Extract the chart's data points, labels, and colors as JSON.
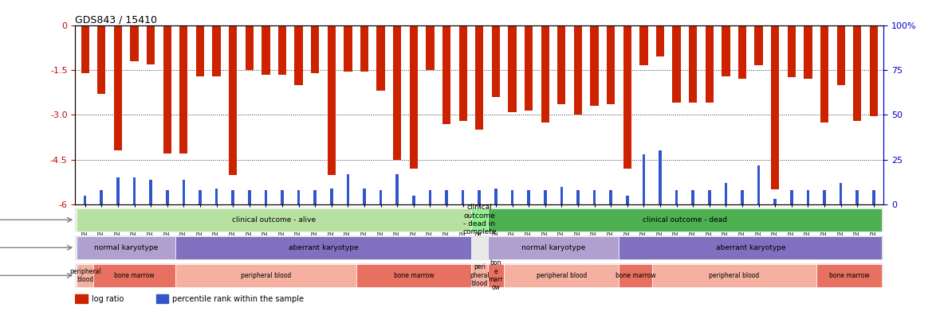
{
  "title": "GDS843 / 15410",
  "samples": [
    "GSM6299",
    "GSM6331",
    "GSM6308",
    "GSM6325",
    "GSM6335",
    "GSM6336",
    "GSM6342",
    "GSM6300",
    "GSM6301",
    "GSM6317",
    "GSM6321",
    "GSM6323",
    "GSM6326",
    "GSM6333",
    "GSM6337",
    "GSM6302",
    "GSM6304",
    "GSM6312",
    "GSM6327",
    "GSM6328",
    "GSM6329",
    "GSM6343",
    "GSM6305",
    "GSM6298",
    "GSM6306",
    "GSM6310",
    "GSM6313",
    "GSM6315",
    "GSM6332",
    "GSM6341",
    "GSM6307",
    "GSM6314",
    "GSM6338",
    "GSM6303",
    "GSM6309",
    "GSM6311",
    "GSM6319",
    "GSM6320",
    "GSM6324",
    "GSM6330",
    "GSM6334",
    "GSM6340",
    "GSM6344",
    "GSM6345",
    "GSM6316",
    "GSM6318",
    "GSM6322",
    "GSM6339",
    "GSM6346"
  ],
  "log_ratio": [
    -1.6,
    -2.3,
    -4.2,
    -1.2,
    -1.3,
    -4.3,
    -4.3,
    -1.7,
    -1.7,
    -5.0,
    -1.5,
    -1.65,
    -1.65,
    -2.0,
    -1.6,
    -5.0,
    -1.55,
    -1.55,
    -2.2,
    -4.5,
    -4.8,
    -1.5,
    -3.3,
    -3.2,
    -3.5,
    -2.4,
    -2.9,
    -2.85,
    -3.25,
    -2.65,
    -3.0,
    -2.7,
    -2.65,
    -4.8,
    -1.35,
    -1.05,
    -2.6,
    -2.6,
    -2.6,
    -1.7,
    -1.8,
    -1.35,
    -5.5,
    -1.75,
    -1.8,
    -3.25,
    -2.0,
    -3.2,
    -3.05
  ],
  "percentile": [
    5,
    8,
    15,
    15,
    14,
    8,
    14,
    8,
    9,
    8,
    8,
    8,
    8,
    8,
    8,
    9,
    17,
    9,
    8,
    17,
    5,
    8,
    8,
    8,
    8,
    9,
    8,
    8,
    8,
    10,
    8,
    8,
    8,
    5,
    28,
    30,
    8,
    8,
    8,
    12,
    8,
    22,
    3,
    8,
    8,
    8,
    12,
    8,
    8
  ],
  "ylim_left": [
    -6,
    0
  ],
  "ylim_right": [
    0,
    100
  ],
  "left_ticks": [
    0,
    -1.5,
    -3.0,
    -4.5,
    -6
  ],
  "right_ticks": [
    0,
    25,
    50,
    75,
    100
  ],
  "bar_width": 0.5,
  "disease_state": {
    "segments": [
      {
        "label": "clinical outcome - alive",
        "start": 0,
        "end": 24,
        "color": "#b7e1a1"
      },
      {
        "label": "clinical\noutcome\n- dead in\ncomplete",
        "start": 24,
        "end": 25,
        "color": "#90ee90"
      },
      {
        "label": "clinical outcome - dead",
        "start": 25,
        "end": 49,
        "color": "#4caf50"
      }
    ]
  },
  "genotype": {
    "segments": [
      {
        "label": "normal karyotype",
        "start": 0,
        "end": 6,
        "color": "#b0a0d0"
      },
      {
        "label": "aberrant karyotype",
        "start": 6,
        "end": 24,
        "color": "#8070c0"
      },
      {
        "label": "normal karyotype",
        "start": 25,
        "end": 33,
        "color": "#b0a0d0"
      },
      {
        "label": "aberrant karyotype",
        "start": 33,
        "end": 49,
        "color": "#8070c0"
      }
    ]
  },
  "tissue": {
    "segments": [
      {
        "label": "peripheral\nblood",
        "start": 0,
        "end": 1,
        "color": "#f5b0a0"
      },
      {
        "label": "bone marrow",
        "start": 1,
        "end": 6,
        "color": "#e87060"
      },
      {
        "label": "peripheral blood",
        "start": 6,
        "end": 17,
        "color": "#f5b0a0"
      },
      {
        "label": "bone marrow",
        "start": 17,
        "end": 24,
        "color": "#e87060"
      },
      {
        "label": "peri\npheral\nblood",
        "start": 24,
        "end": 25,
        "color": "#f5b0a0"
      },
      {
        "label": "bon\ne\nmarr\now",
        "start": 25,
        "end": 26,
        "color": "#e87060"
      },
      {
        "label": "peripheral blood",
        "start": 26,
        "end": 33,
        "color": "#f5b0a0"
      },
      {
        "label": "bone marrow",
        "start": 33,
        "end": 35,
        "color": "#e87060"
      },
      {
        "label": "peripheral blood",
        "start": 35,
        "end": 45,
        "color": "#f5b0a0"
      },
      {
        "label": "bone marrow",
        "start": 45,
        "end": 49,
        "color": "#e87060"
      }
    ]
  },
  "red_color": "#cc2200",
  "blue_color": "#3355cc",
  "bg_color": "#ffffff",
  "axis_color": "#cc0000",
  "right_axis_color": "#0000cc",
  "grid_color": "#333333"
}
